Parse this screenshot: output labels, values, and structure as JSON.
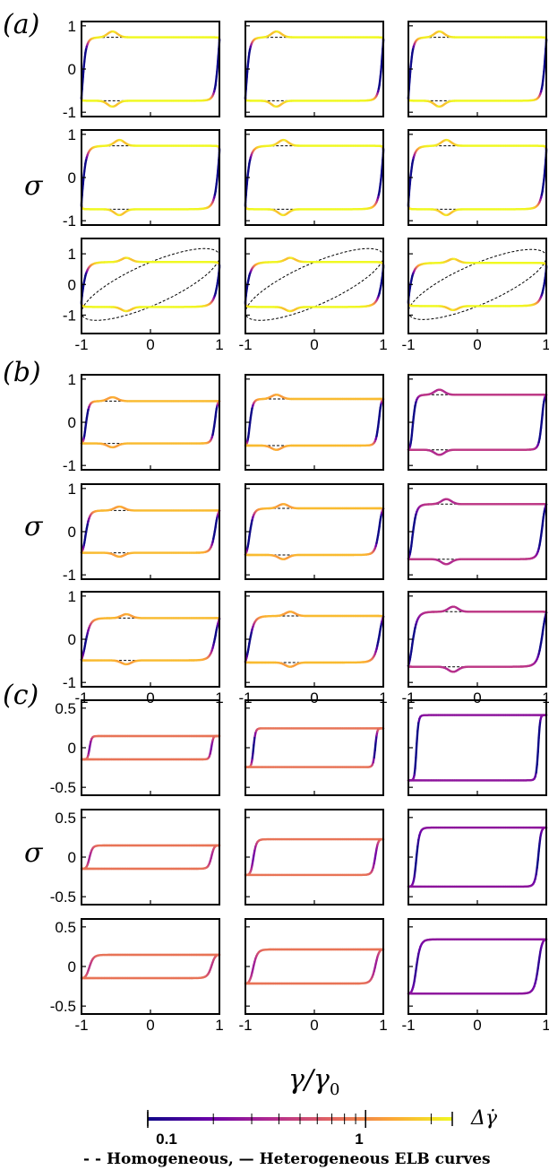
{
  "chart_data": {
    "type": "line",
    "panel_labels": [
      "(a)",
      "(b)",
      "(c)"
    ],
    "ylabel": "σ",
    "xlabel": "γ/γ0",
    "x_ticks": [
      "-1",
      "0",
      "1"
    ],
    "x_range": [
      -1,
      1
    ],
    "groups": [
      {
        "y_ticks": [
          "1",
          "0",
          "-1"
        ],
        "row3_y_ticks": [
          "1",
          "0",
          "-1"
        ],
        "ylim": [
          -1.1,
          1.1
        ],
        "row3_ylim": [
          -1.6,
          1.5
        ]
      },
      {
        "y_ticks": [
          "1",
          "0",
          "-1"
        ],
        "ylim": [
          -1.1,
          1.1
        ]
      },
      {
        "y_ticks": [
          "0.5",
          "0",
          "-0.5"
        ],
        "ylim": [
          -0.6,
          0.6
        ]
      }
    ],
    "stress_amplitudes": [
      [
        [
          0.75,
          0.75,
          0.75
        ],
        [
          0.75,
          0.75,
          0.75
        ],
        [
          0.75,
          0.75,
          0.72
        ]
      ],
      [
        [
          0.5,
          0.55,
          0.65
        ],
        [
          0.5,
          0.55,
          0.65
        ],
        [
          0.5,
          0.55,
          0.65
        ]
      ],
      [
        [
          0.15,
          0.25,
          0.42
        ],
        [
          0.15,
          0.23,
          0.38
        ],
        [
          0.15,
          0.22,
          0.35
        ]
      ]
    ],
    "colorbar": {
      "label": "Δγ̇",
      "ticks": [
        "0.1",
        "1"
      ],
      "scale": "log",
      "range": [
        0.1,
        2.5
      ],
      "colormap": [
        "#0d0887",
        "#6a00a8",
        "#b12a90",
        "#e16462",
        "#fca636",
        "#f0f921"
      ]
    },
    "legend_text": "- - Homogeneous, — Heterogeneous ELB curves"
  }
}
